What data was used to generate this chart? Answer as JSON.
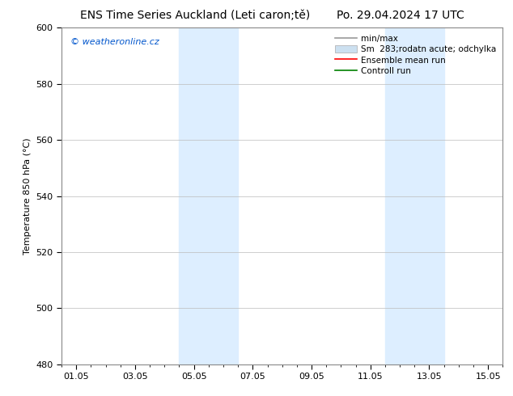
{
  "title_left": "ENS Time Series Auckland (Leti caron;tě)",
  "title_right": "Po. 29.04.2024 17 UTC",
  "ylabel": "Temperature 850 hPa (°C)",
  "watermark": "© weatheronline.cz",
  "watermark_color": "#0055cc",
  "xlim_start": -0.5,
  "xlim_end": 14.5,
  "ylim": [
    480,
    600
  ],
  "yticks": [
    480,
    500,
    520,
    540,
    560,
    580,
    600
  ],
  "xtick_labels": [
    "01.05",
    "03.05",
    "05.05",
    "07.05",
    "09.05",
    "11.05",
    "13.05",
    "15.05"
  ],
  "xtick_positions": [
    0.0,
    2.0,
    4.0,
    6.0,
    8.0,
    10.0,
    12.0,
    14.0
  ],
  "shaded_bands": [
    {
      "x_start": 3.5,
      "x_end": 5.5,
      "color": "#ddeeff"
    },
    {
      "x_start": 10.5,
      "x_end": 12.5,
      "color": "#ddeeff"
    }
  ],
  "legend_entries": [
    {
      "label": "min/max",
      "color": "#999999",
      "lw": 1.2,
      "patch": false
    },
    {
      "label": "Sm  283;rodatn acute; odchylka",
      "color": "#cce0f0",
      "lw": 8,
      "patch": true
    },
    {
      "label": "Ensemble mean run",
      "color": "red",
      "lw": 1.2,
      "patch": false
    },
    {
      "label": "Controll run",
      "color": "green",
      "lw": 1.2,
      "patch": false
    }
  ],
  "bg_color": "#ffffff",
  "plot_bg_color": "#ffffff",
  "grid_color": "#bbbbbb",
  "tick_fontsize": 8,
  "label_fontsize": 8,
  "title_fontsize": 10,
  "legend_fontsize": 7.5
}
